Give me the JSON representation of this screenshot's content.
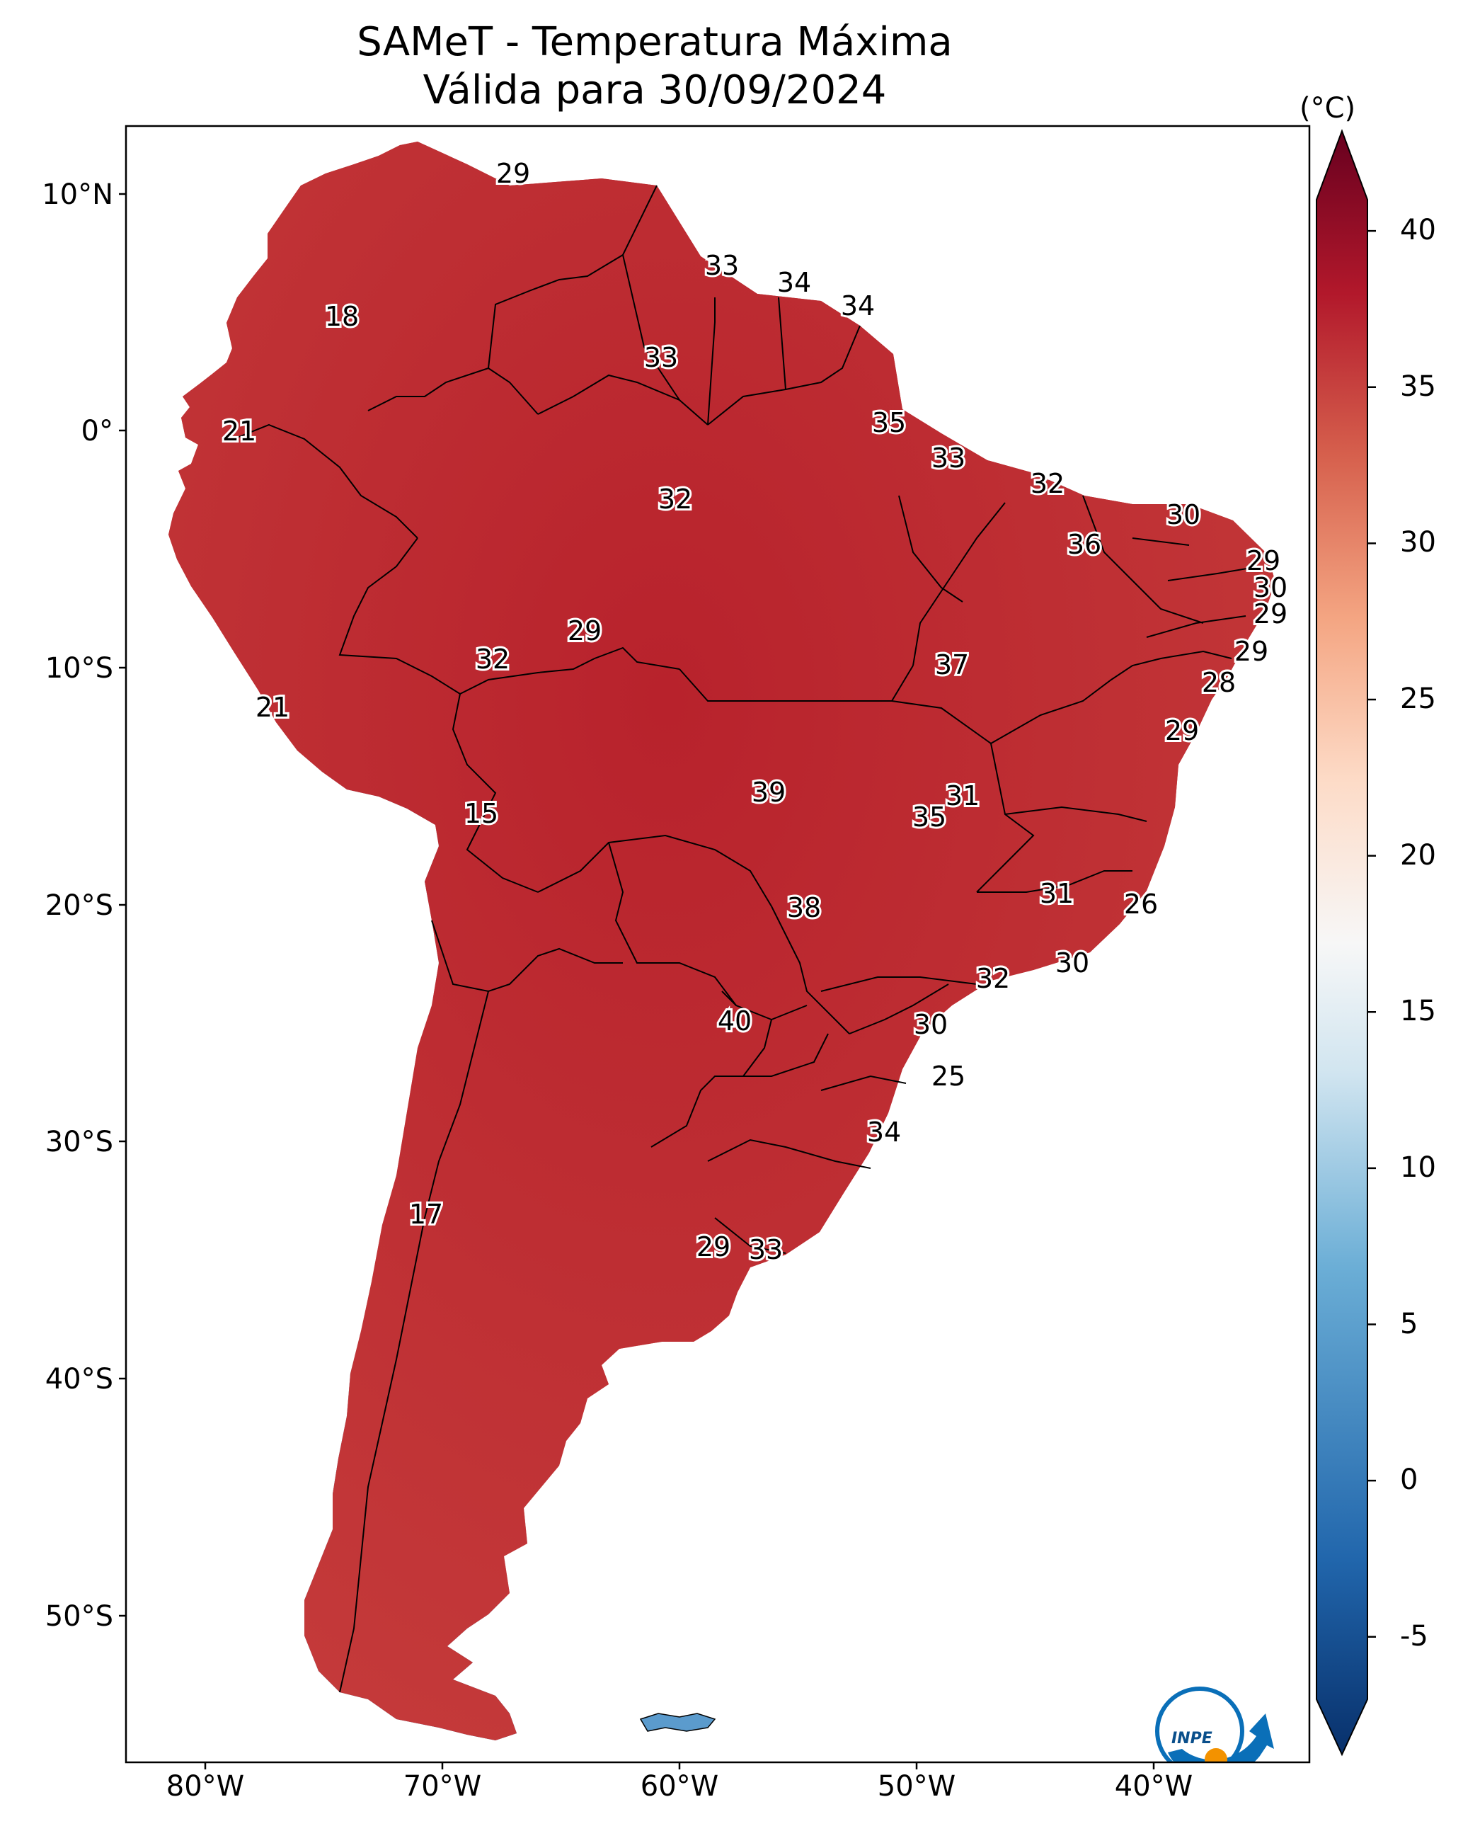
{
  "title": {
    "line1": "SAMeT - Temperatura Máxima",
    "line2": "Válida para 30/09/2024"
  },
  "axes": {
    "lat_labels": [
      "10°N",
      "0°",
      "10°S",
      "20°S",
      "30°S",
      "40°S",
      "50°S"
    ],
    "lon_labels": [
      "80°W",
      "70°W",
      "60°W",
      "50°W",
      "40°W"
    ]
  },
  "colorbar": {
    "unit": "(°C)",
    "ticks": [
      "40",
      "35",
      "30",
      "25",
      "20",
      "15",
      "10",
      "5",
      "0",
      "-5"
    ],
    "min": -7,
    "max": 41,
    "colors": {
      "cold": "#08306b",
      "cool": "#4393c3",
      "neutral": "#f7f7f7",
      "warm": "#f4a582",
      "hot": "#d6604d",
      "hotter": "#b2182b",
      "hottest": "#67001f"
    }
  },
  "temperature_labels": [
    {
      "value": "29"
    },
    {
      "value": "33"
    },
    {
      "value": "34"
    },
    {
      "value": "34"
    },
    {
      "value": "18"
    },
    {
      "value": "33"
    },
    {
      "value": "21"
    },
    {
      "value": "35"
    },
    {
      "value": "33"
    },
    {
      "value": "32"
    },
    {
      "value": "32"
    },
    {
      "value": "30"
    },
    {
      "value": "36"
    },
    {
      "value": "29"
    },
    {
      "value": "30"
    },
    {
      "value": "29"
    },
    {
      "value": "29"
    },
    {
      "value": "28"
    },
    {
      "value": "32"
    },
    {
      "value": "37"
    },
    {
      "value": "29"
    },
    {
      "value": "21"
    },
    {
      "value": "29"
    },
    {
      "value": "15"
    },
    {
      "value": "39"
    },
    {
      "value": "31"
    },
    {
      "value": "35"
    },
    {
      "value": "31"
    },
    {
      "value": "26"
    },
    {
      "value": "38"
    },
    {
      "value": "30"
    },
    {
      "value": "32"
    },
    {
      "value": "40"
    },
    {
      "value": "30"
    },
    {
      "value": "25"
    },
    {
      "value": "34"
    },
    {
      "value": "17"
    },
    {
      "value": "29"
    },
    {
      "value": "33"
    }
  ],
  "logo": {
    "text": "INPE"
  }
}
